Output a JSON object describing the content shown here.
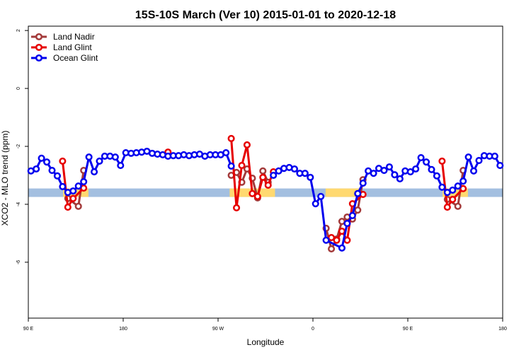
{
  "chart_data": {
    "type": "line",
    "title": "15S-10S March (Ver 10)   2015-01-01 to 2020-12-18",
    "x_label": "Longitude",
    "y_label": "XCO2 - MLO trend (ppm)",
    "xlim": [
      90,
      540
    ],
    "ylim": [
      -7.93,
      2.15
    ],
    "xticks": [
      {
        "value": 90,
        "label": "90 E"
      },
      180,
      {
        "value": 270,
        "label": "90 W"
      },
      {
        "value": 360,
        "label": "0"
      },
      {
        "value": 450,
        "label": "90 E"
      },
      {
        "value": 540,
        "label": "180"
      }
    ],
    "yticks": [
      2,
      0,
      -2,
      -4,
      -6
    ],
    "legend": "top-left",
    "band": {
      "y": -3.6,
      "color": "#a3bfe0",
      "land_color": "#ffd970",
      "land_spans": [
        [
          123,
          147
        ],
        [
          281,
          324
        ],
        [
          372,
          406
        ],
        [
          483,
          507
        ]
      ]
    },
    "series": [
      {
        "name": "Land Nadir",
        "color": "#a33a3a",
        "x": [
          127.5,
          137.5,
          142.5,
          262.5,
          282.5,
          287.5,
          292.5,
          297.5,
          302.5,
          307.5,
          312.5,
          317.5,
          362.5,
          372.5,
          377.5,
          382.5,
          387.5,
          392.5,
          397.5,
          402.5,
          407.5,
          462.5,
          487.5,
          497.5,
          502.5
        ],
        "values": [
          -3.8,
          -4.07,
          -2.83,
          null,
          -3.0,
          -2.9,
          -3.24,
          -2.78,
          -3.1,
          -3.78,
          -2.85,
          -3.24,
          null,
          -4.83,
          -5.54,
          -5.2,
          -4.59,
          -4.44,
          -4.51,
          -4.2,
          -3.15,
          null,
          -3.83,
          -4.07,
          -2.83
        ]
      },
      {
        "name": "Land Glint",
        "color": "#e60000",
        "x": [
          122.5,
          127.5,
          132.5,
          142.5,
          182.5,
          222.5,
          262.5,
          282.5,
          287.5,
          292.5,
          297.5,
          302.5,
          307.5,
          312.5,
          317.5,
          322.5,
          362.5,
          377.5,
          382.5,
          387.5,
          392.5,
          397.5,
          407.5,
          462.5,
          482.5,
          487.5,
          492.5,
          502.5
        ],
        "values": [
          -2.51,
          -4.1,
          -3.8,
          -3.44,
          null,
          -2.2,
          null,
          -1.73,
          -4.12,
          -2.66,
          -1.95,
          -3.63,
          -3.73,
          -3.07,
          -3.34,
          -2.88,
          null,
          -5.15,
          -5.24,
          -4.93,
          -5.24,
          -3.98,
          -3.66,
          null,
          -2.51,
          -4.1,
          -3.83,
          -3.46
        ]
      },
      {
        "name": "Ocean Glint",
        "color": "#0000ee",
        "x": [
          92.5,
          97.5,
          102.5,
          107.5,
          112.5,
          117.5,
          122.5,
          127.5,
          132.5,
          137.5,
          142.5,
          147.5,
          152.5,
          157.5,
          162.5,
          167.5,
          172.5,
          177.5,
          182.5,
          187.5,
          192.5,
          197.5,
          202.5,
          207.5,
          212.5,
          217.5,
          222.5,
          227.5,
          232.5,
          237.5,
          242.5,
          247.5,
          252.5,
          257.5,
          262.5,
          267.5,
          272.5,
          277.5,
          282.5,
          302.5,
          322.5,
          327.5,
          332.5,
          337.5,
          342.5,
          347.5,
          352.5,
          357.5,
          362.5,
          367.5,
          372.5,
          387.5,
          392.5,
          397.5,
          402.5,
          407.5,
          412.5,
          417.5,
          422.5,
          427.5,
          432.5,
          437.5,
          442.5,
          447.5,
          452.5,
          457.5,
          462.5,
          467.5,
          472.5,
          477.5,
          482.5,
          487.5,
          492.5,
          497.5,
          502.5,
          507.5,
          512.5,
          517.5,
          522.5,
          527.5,
          532.5,
          537.5
        ],
        "values": [
          -2.85,
          -2.78,
          -2.41,
          -2.54,
          -2.83,
          -3.02,
          -3.39,
          -3.59,
          -3.54,
          -3.37,
          -3.22,
          -2.37,
          -2.88,
          -2.51,
          -2.34,
          -2.34,
          -2.37,
          -2.66,
          -2.22,
          -2.24,
          -2.22,
          -2.2,
          -2.17,
          -2.24,
          -2.27,
          -2.29,
          -2.34,
          -2.32,
          -2.32,
          -2.29,
          -2.32,
          -2.29,
          -2.27,
          -2.34,
          -2.29,
          -2.29,
          -2.29,
          -2.22,
          -2.68,
          null,
          -3.0,
          -2.85,
          -2.76,
          -2.73,
          -2.78,
          -2.93,
          -2.93,
          -3.07,
          -3.98,
          -3.73,
          -5.24,
          -5.51,
          -4.66,
          -4.39,
          -3.63,
          -3.27,
          -2.85,
          -2.93,
          -2.76,
          -2.83,
          -2.71,
          -2.98,
          -3.12,
          -2.85,
          -2.88,
          -2.78,
          -2.39,
          -2.54,
          -2.8,
          -3.02,
          -3.41,
          -3.59,
          -3.51,
          -3.37,
          -3.2,
          -2.37,
          -2.85,
          -2.49,
          -2.32,
          -2.34,
          -2.34,
          -2.66
        ]
      }
    ]
  }
}
